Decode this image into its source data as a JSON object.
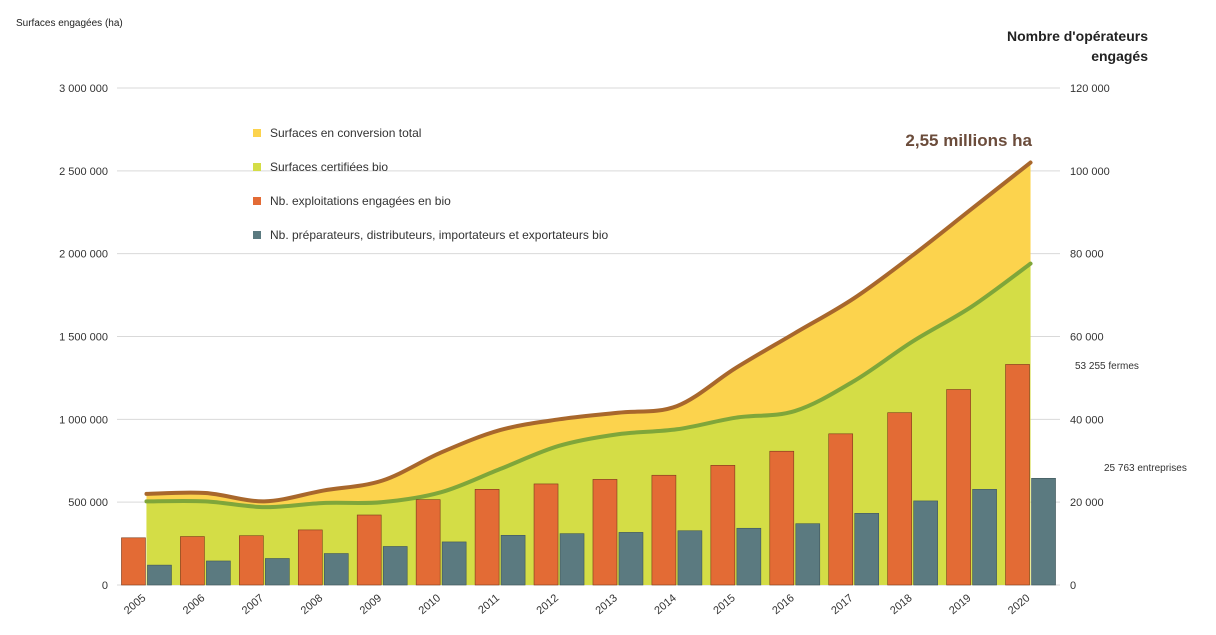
{
  "colors": {
    "conversion": "#fcd34d",
    "conversion_line": "#a8672c",
    "certified": "#d4dd46",
    "certified_line": "#7fa63a",
    "farms": "#e36b35",
    "operators": "#5b7a80",
    "grid": "#d9d9d9"
  },
  "left_axis_title": "Surfaces engagées (ha)",
  "right_axis_title": [
    "Nombre d'opérateurs",
    "engagés"
  ],
  "chart_data": {
    "type": "bar",
    "x": [
      "2005",
      "2006",
      "2007",
      "2008",
      "2009",
      "2010",
      "2011",
      "2012",
      "2013",
      "2014",
      "2015",
      "2016",
      "2017",
      "2018",
      "2019",
      "2020"
    ],
    "y_left_ticks": [
      "3 000 000",
      "2 500 000",
      "2 000 000",
      "1 500 000",
      "1 000 000",
      "500 000",
      "0"
    ],
    "y_right_ticks": [
      "120 000",
      "100 000",
      "80 000",
      "60 000",
      "40 000",
      "20 000",
      "0"
    ],
    "ylim_left": [
      0,
      3000000
    ],
    "ylim_right": [
      0,
      120000
    ],
    "series": [
      {
        "name": "Surfaces en conversion total",
        "kind": "area",
        "axis": "left",
        "values": [
          550000,
          555000,
          505000,
          570000,
          630000,
          800000,
          935000,
          1000000,
          1040000,
          1080000,
          1310000,
          1520000,
          1730000,
          1990000,
          2270000,
          2550000
        ]
      },
      {
        "name": "Surfaces certifiées bio",
        "kind": "area",
        "axis": "left",
        "values": [
          505000,
          505000,
          470000,
          495000,
          500000,
          560000,
          700000,
          840000,
          910000,
          940000,
          1010000,
          1050000,
          1230000,
          1470000,
          1680000,
          1940000
        ]
      },
      {
        "name": "Nb. exploitations engagées en bio",
        "kind": "bar",
        "axis": "right",
        "values": [
          11400,
          11700,
          11900,
          13300,
          16900,
          20600,
          23100,
          24400,
          25500,
          26500,
          28900,
          32300,
          36500,
          41600,
          47200,
          53255
        ]
      },
      {
        "name": "Nb. préparateurs, distributeurs, importateurs et exportateurs bio",
        "kind": "bar",
        "axis": "right",
        "values": [
          4800,
          5800,
          6400,
          7600,
          9300,
          10400,
          12000,
          12400,
          12700,
          13100,
          13700,
          14800,
          17300,
          20300,
          23100,
          25763
        ]
      }
    ],
    "annotations": {
      "total_label": "2,55 millions ha",
      "farms_label": "53 255 fermes",
      "operators_label": "25 763 entreprises"
    }
  }
}
